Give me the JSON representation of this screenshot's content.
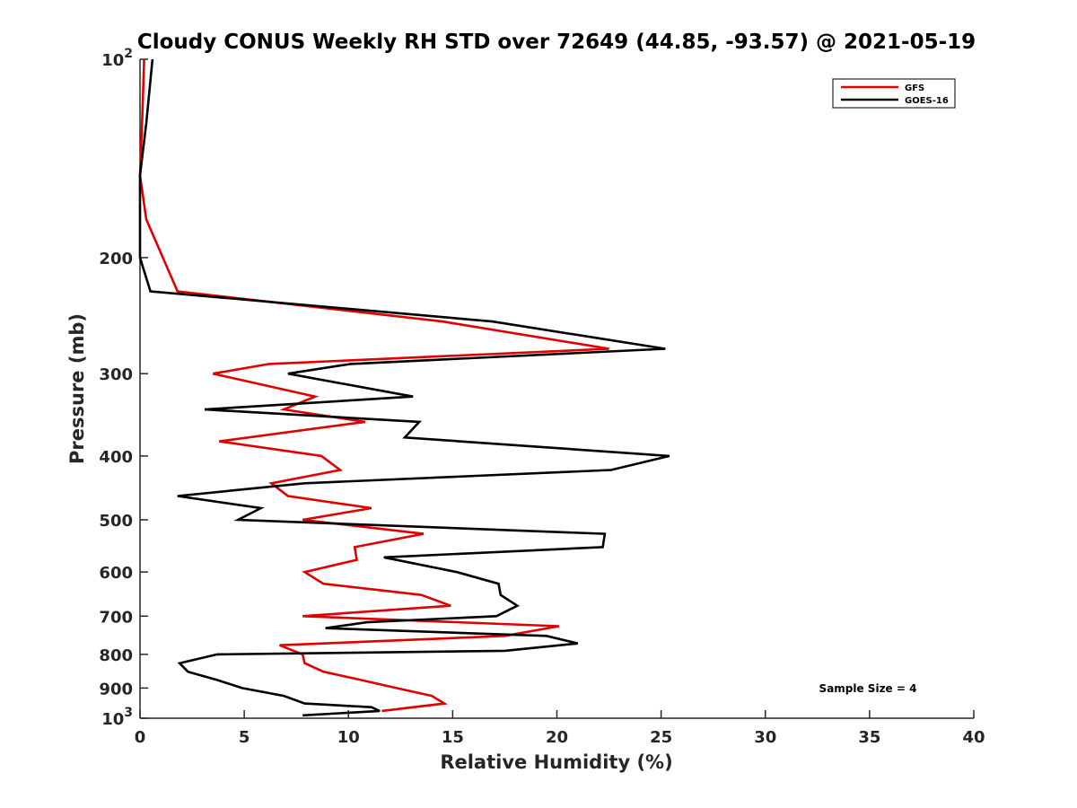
{
  "chart_data": {
    "type": "line",
    "title": "Cloudy CONUS Weekly RH STD over 72649 (44.85, -93.57) @ 2021-05-19",
    "xlabel": "Relative Humidity (%)",
    "ylabel": "Pressure (mb)",
    "xlim": [
      0,
      40
    ],
    "ylim": [
      1000,
      100
    ],
    "yscale": "log",
    "grid": false,
    "legend_position": "top-right",
    "x_ticks": [
      "0",
      "5",
      "10",
      "15",
      "20",
      "25",
      "30",
      "35",
      "40"
    ],
    "y_ticks": [
      {
        "value": 100,
        "base": "10",
        "exp": "2"
      },
      {
        "value": 200,
        "label": "200"
      },
      {
        "value": 300,
        "label": "300"
      },
      {
        "value": 400,
        "label": "400"
      },
      {
        "value": 500,
        "label": "500"
      },
      {
        "value": 600,
        "label": "600"
      },
      {
        "value": 700,
        "label": "700"
      },
      {
        "value": 800,
        "label": "800"
      },
      {
        "value": 900,
        "label": "900"
      },
      {
        "value": 1000,
        "base": "10",
        "exp": "3"
      }
    ],
    "annotation": "Sample Size = 4",
    "series": [
      {
        "name": "GFS",
        "color": "#e00000",
        "points": [
          [
            0.2,
            100
          ],
          [
            0.1,
            125
          ],
          [
            0.0,
            150
          ],
          [
            0.3,
            175
          ],
          [
            1.1,
            200
          ],
          [
            1.8,
            225
          ],
          [
            14.5,
            250
          ],
          [
            22.5,
            275
          ],
          [
            6.2,
            290
          ],
          [
            3.5,
            300
          ],
          [
            8.4,
            325
          ],
          [
            6.9,
            340
          ],
          [
            10.8,
            355
          ],
          [
            3.8,
            380
          ],
          [
            8.7,
            400
          ],
          [
            9.6,
            420
          ],
          [
            6.3,
            440
          ],
          [
            7.1,
            460
          ],
          [
            11.1,
            480
          ],
          [
            7.8,
            500
          ],
          [
            13.6,
            525
          ],
          [
            10.3,
            550
          ],
          [
            10.4,
            575
          ],
          [
            7.9,
            600
          ],
          [
            8.8,
            625
          ],
          [
            13.5,
            650
          ],
          [
            14.9,
            675
          ],
          [
            7.8,
            700
          ],
          [
            20.1,
            725
          ],
          [
            17.5,
            750
          ],
          [
            6.7,
            775
          ],
          [
            7.8,
            800
          ],
          [
            7.9,
            825
          ],
          [
            8.8,
            850
          ],
          [
            10.6,
            875
          ],
          [
            12.3,
            900
          ],
          [
            14.0,
            925
          ],
          [
            14.6,
            950
          ],
          [
            11.6,
            975
          ]
        ]
      },
      {
        "name": "GOES-16",
        "color": "#000000",
        "points": [
          [
            0.6,
            100
          ],
          [
            0.3,
            125
          ],
          [
            0.0,
            150
          ],
          [
            0.0,
            175
          ],
          [
            0.0,
            200
          ],
          [
            0.5,
            225
          ],
          [
            16.9,
            250
          ],
          [
            25.2,
            275
          ],
          [
            10.1,
            290
          ],
          [
            7.1,
            300
          ],
          [
            13.1,
            325
          ],
          [
            3.1,
            340
          ],
          [
            13.4,
            355
          ],
          [
            12.7,
            375
          ],
          [
            25.4,
            400
          ],
          [
            22.6,
            420
          ],
          [
            7.9,
            440
          ],
          [
            1.8,
            460
          ],
          [
            5.8,
            480
          ],
          [
            4.7,
            500
          ],
          [
            22.3,
            525
          ],
          [
            22.2,
            550
          ],
          [
            11.7,
            570
          ],
          [
            15.2,
            600
          ],
          [
            17.2,
            625
          ],
          [
            17.3,
            650
          ],
          [
            18.1,
            675
          ],
          [
            17.1,
            700
          ],
          [
            10.9,
            715
          ],
          [
            8.9,
            730
          ],
          [
            19.5,
            750
          ],
          [
            21.0,
            770
          ],
          [
            17.5,
            790
          ],
          [
            3.7,
            800
          ],
          [
            1.9,
            825
          ],
          [
            2.3,
            850
          ],
          [
            3.7,
            875
          ],
          [
            4.9,
            900
          ],
          [
            6.9,
            925
          ],
          [
            7.9,
            950
          ],
          [
            11.1,
            962
          ],
          [
            11.5,
            975
          ],
          [
            7.8,
            990
          ]
        ]
      }
    ]
  }
}
